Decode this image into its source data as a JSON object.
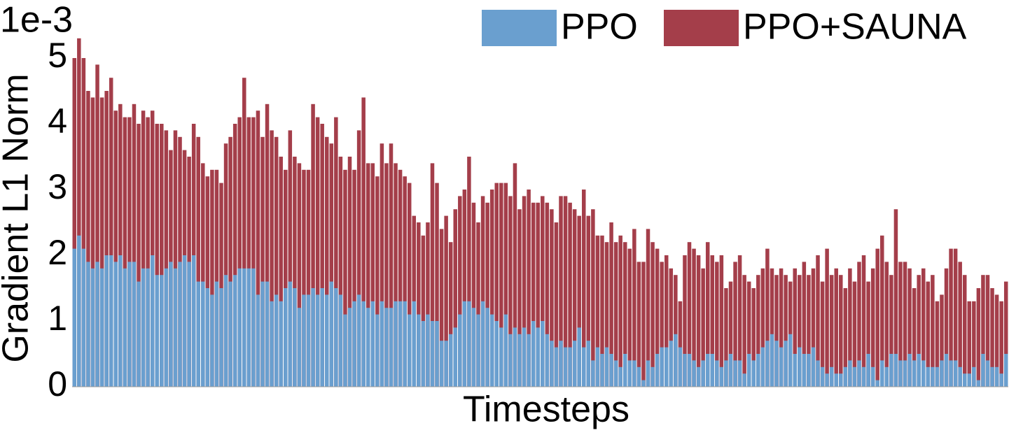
{
  "chart_data": {
    "type": "bar",
    "bar_mode": "overlay",
    "y_offset_label": "1e-3",
    "ylabel": "Gradient L1 Norm",
    "xlabel": "Timesteps",
    "ylim": [
      0,
      5.5
    ],
    "yticks": [
      0,
      1,
      2,
      3,
      4,
      5
    ],
    "grid": false,
    "legend": "upper right",
    "series": [
      {
        "name": "PPO",
        "color": "#6a9fcf",
        "values": [
          2.1,
          2.3,
          2.1,
          1.9,
          1.8,
          1.9,
          1.8,
          2.0,
          2.0,
          1.9,
          2.0,
          1.8,
          1.9,
          1.9,
          1.6,
          1.8,
          1.8,
          2.0,
          1.7,
          1.7,
          1.8,
          1.9,
          1.8,
          1.9,
          2.0,
          1.9,
          2.0,
          1.6,
          1.6,
          1.5,
          1.4,
          1.6,
          1.5,
          1.7,
          1.6,
          1.7,
          1.8,
          1.8,
          1.8,
          1.8,
          1.4,
          1.6,
          1.6,
          1.3,
          1.4,
          1.3,
          1.5,
          1.6,
          1.5,
          1.2,
          1.4,
          1.4,
          1.5,
          1.4,
          1.5,
          1.4,
          1.6,
          1.5,
          1.4,
          1.1,
          1.2,
          1.3,
          1.4,
          1.3,
          1.2,
          1.3,
          1.1,
          1.3,
          1.2,
          1.2,
          1.3,
          1.3,
          1.3,
          1.1,
          1.3,
          1.1,
          1.0,
          1.1,
          1.0,
          1.0,
          0.7,
          0.7,
          0.8,
          0.9,
          1.1,
          1.3,
          1.3,
          1.2,
          1.1,
          1.3,
          1.2,
          1.1,
          1.0,
          0.9,
          1.1,
          0.8,
          0.9,
          0.8,
          0.9,
          0.8,
          1.0,
          0.9,
          1.0,
          0.8,
          0.7,
          0.6,
          0.7,
          0.6,
          0.6,
          0.7,
          0.9,
          0.6,
          0.7,
          0.4,
          0.6,
          0.5,
          0.6,
          0.5,
          0.4,
          0.3,
          0.5,
          0.4,
          0.4,
          0.3,
          0.1,
          0.4,
          0.3,
          0.5,
          0.6,
          0.6,
          0.7,
          0.8,
          0.6,
          0.5,
          0.5,
          0.4,
          0.3,
          0.4,
          0.5,
          0.5,
          0.4,
          0.3,
          0.4,
          0.5,
          0.4,
          0.4,
          0.2,
          0.5,
          0.4,
          0.5,
          0.6,
          0.7,
          0.8,
          0.7,
          0.6,
          0.7,
          0.8,
          0.5,
          0.6,
          0.5,
          0.5,
          0.6,
          0.4,
          0.3,
          0.2,
          0.3,
          0.2,
          0.2,
          0.3,
          0.4,
          0.3,
          0.4,
          0.3,
          0.5,
          0.3,
          0.1,
          0.4,
          0.3,
          0.5,
          0.5,
          0.4,
          0.4,
          0.5,
          0.4,
          0.5,
          0.4,
          0.3,
          0.3,
          0.3,
          0.4,
          0.5,
          0.4,
          0.4,
          0.3,
          0.2,
          0.2,
          0.3,
          0.1,
          0.5,
          0.4,
          0.3,
          0.3,
          0.2,
          0.5
        ]
      },
      {
        "name": "PPO+SAUNA",
        "color": "#a43e4a",
        "values": [
          5.0,
          5.3,
          5.0,
          4.5,
          4.4,
          4.9,
          4.4,
          4.5,
          4.7,
          4.2,
          4.3,
          4.1,
          4.1,
          4.3,
          4.0,
          4.2,
          4.1,
          4.2,
          4.0,
          4.0,
          3.9,
          3.6,
          3.9,
          3.8,
          3.6,
          3.5,
          4.0,
          3.8,
          3.4,
          3.2,
          3.3,
          3.3,
          3.1,
          3.7,
          3.8,
          4.0,
          4.1,
          4.7,
          4.1,
          4.1,
          4.2,
          3.8,
          4.3,
          3.9,
          3.8,
          3.5,
          3.3,
          3.9,
          3.5,
          3.4,
          3.3,
          3.3,
          4.3,
          4.1,
          4.0,
          3.8,
          3.7,
          4.1,
          3.5,
          3.3,
          3.5,
          3.3,
          3.9,
          4.4,
          3.4,
          3.4,
          3.2,
          3.7,
          3.4,
          3.7,
          3.4,
          3.3,
          3.2,
          3.1,
          2.6,
          2.5,
          2.3,
          2.5,
          3.4,
          3.1,
          2.4,
          2.6,
          2.2,
          2.7,
          2.9,
          3.0,
          3.5,
          2.8,
          2.5,
          2.9,
          2.8,
          3.0,
          3.1,
          3.1,
          3.1,
          2.9,
          3.4,
          2.7,
          2.9,
          3.0,
          2.8,
          2.8,
          2.9,
          2.8,
          2.7,
          2.5,
          2.9,
          2.9,
          2.8,
          2.7,
          2.6,
          3.0,
          2.6,
          2.7,
          2.3,
          2.3,
          2.2,
          2.5,
          2.2,
          2.3,
          2.2,
          2.1,
          2.4,
          1.9,
          1.9,
          2.4,
          2.2,
          2.1,
          1.9,
          2.0,
          1.8,
          1.7,
          1.3,
          2.0,
          2.2,
          2.1,
          2.0,
          1.8,
          2.2,
          2.0,
          1.9,
          2.0,
          1.5,
          1.6,
          1.9,
          2.0,
          1.7,
          1.6,
          1.5,
          1.7,
          1.8,
          2.1,
          1.8,
          1.7,
          1.8,
          1.7,
          1.6,
          1.8,
          1.7,
          1.9,
          1.7,
          1.8,
          2.0,
          1.6,
          2.1,
          1.7,
          1.8,
          1.7,
          1.5,
          1.8,
          1.6,
          1.9,
          2.0,
          1.6,
          1.8,
          2.1,
          2.3,
          1.9,
          1.7,
          2.7,
          1.9,
          1.9,
          1.8,
          1.5,
          1.7,
          1.8,
          1.6,
          1.7,
          1.3,
          1.4,
          1.8,
          2.1,
          2.1,
          1.9,
          1.7,
          1.3,
          1.3,
          1.5,
          1.7,
          1.7,
          1.5,
          1.4,
          1.3,
          1.6
        ]
      }
    ]
  }
}
